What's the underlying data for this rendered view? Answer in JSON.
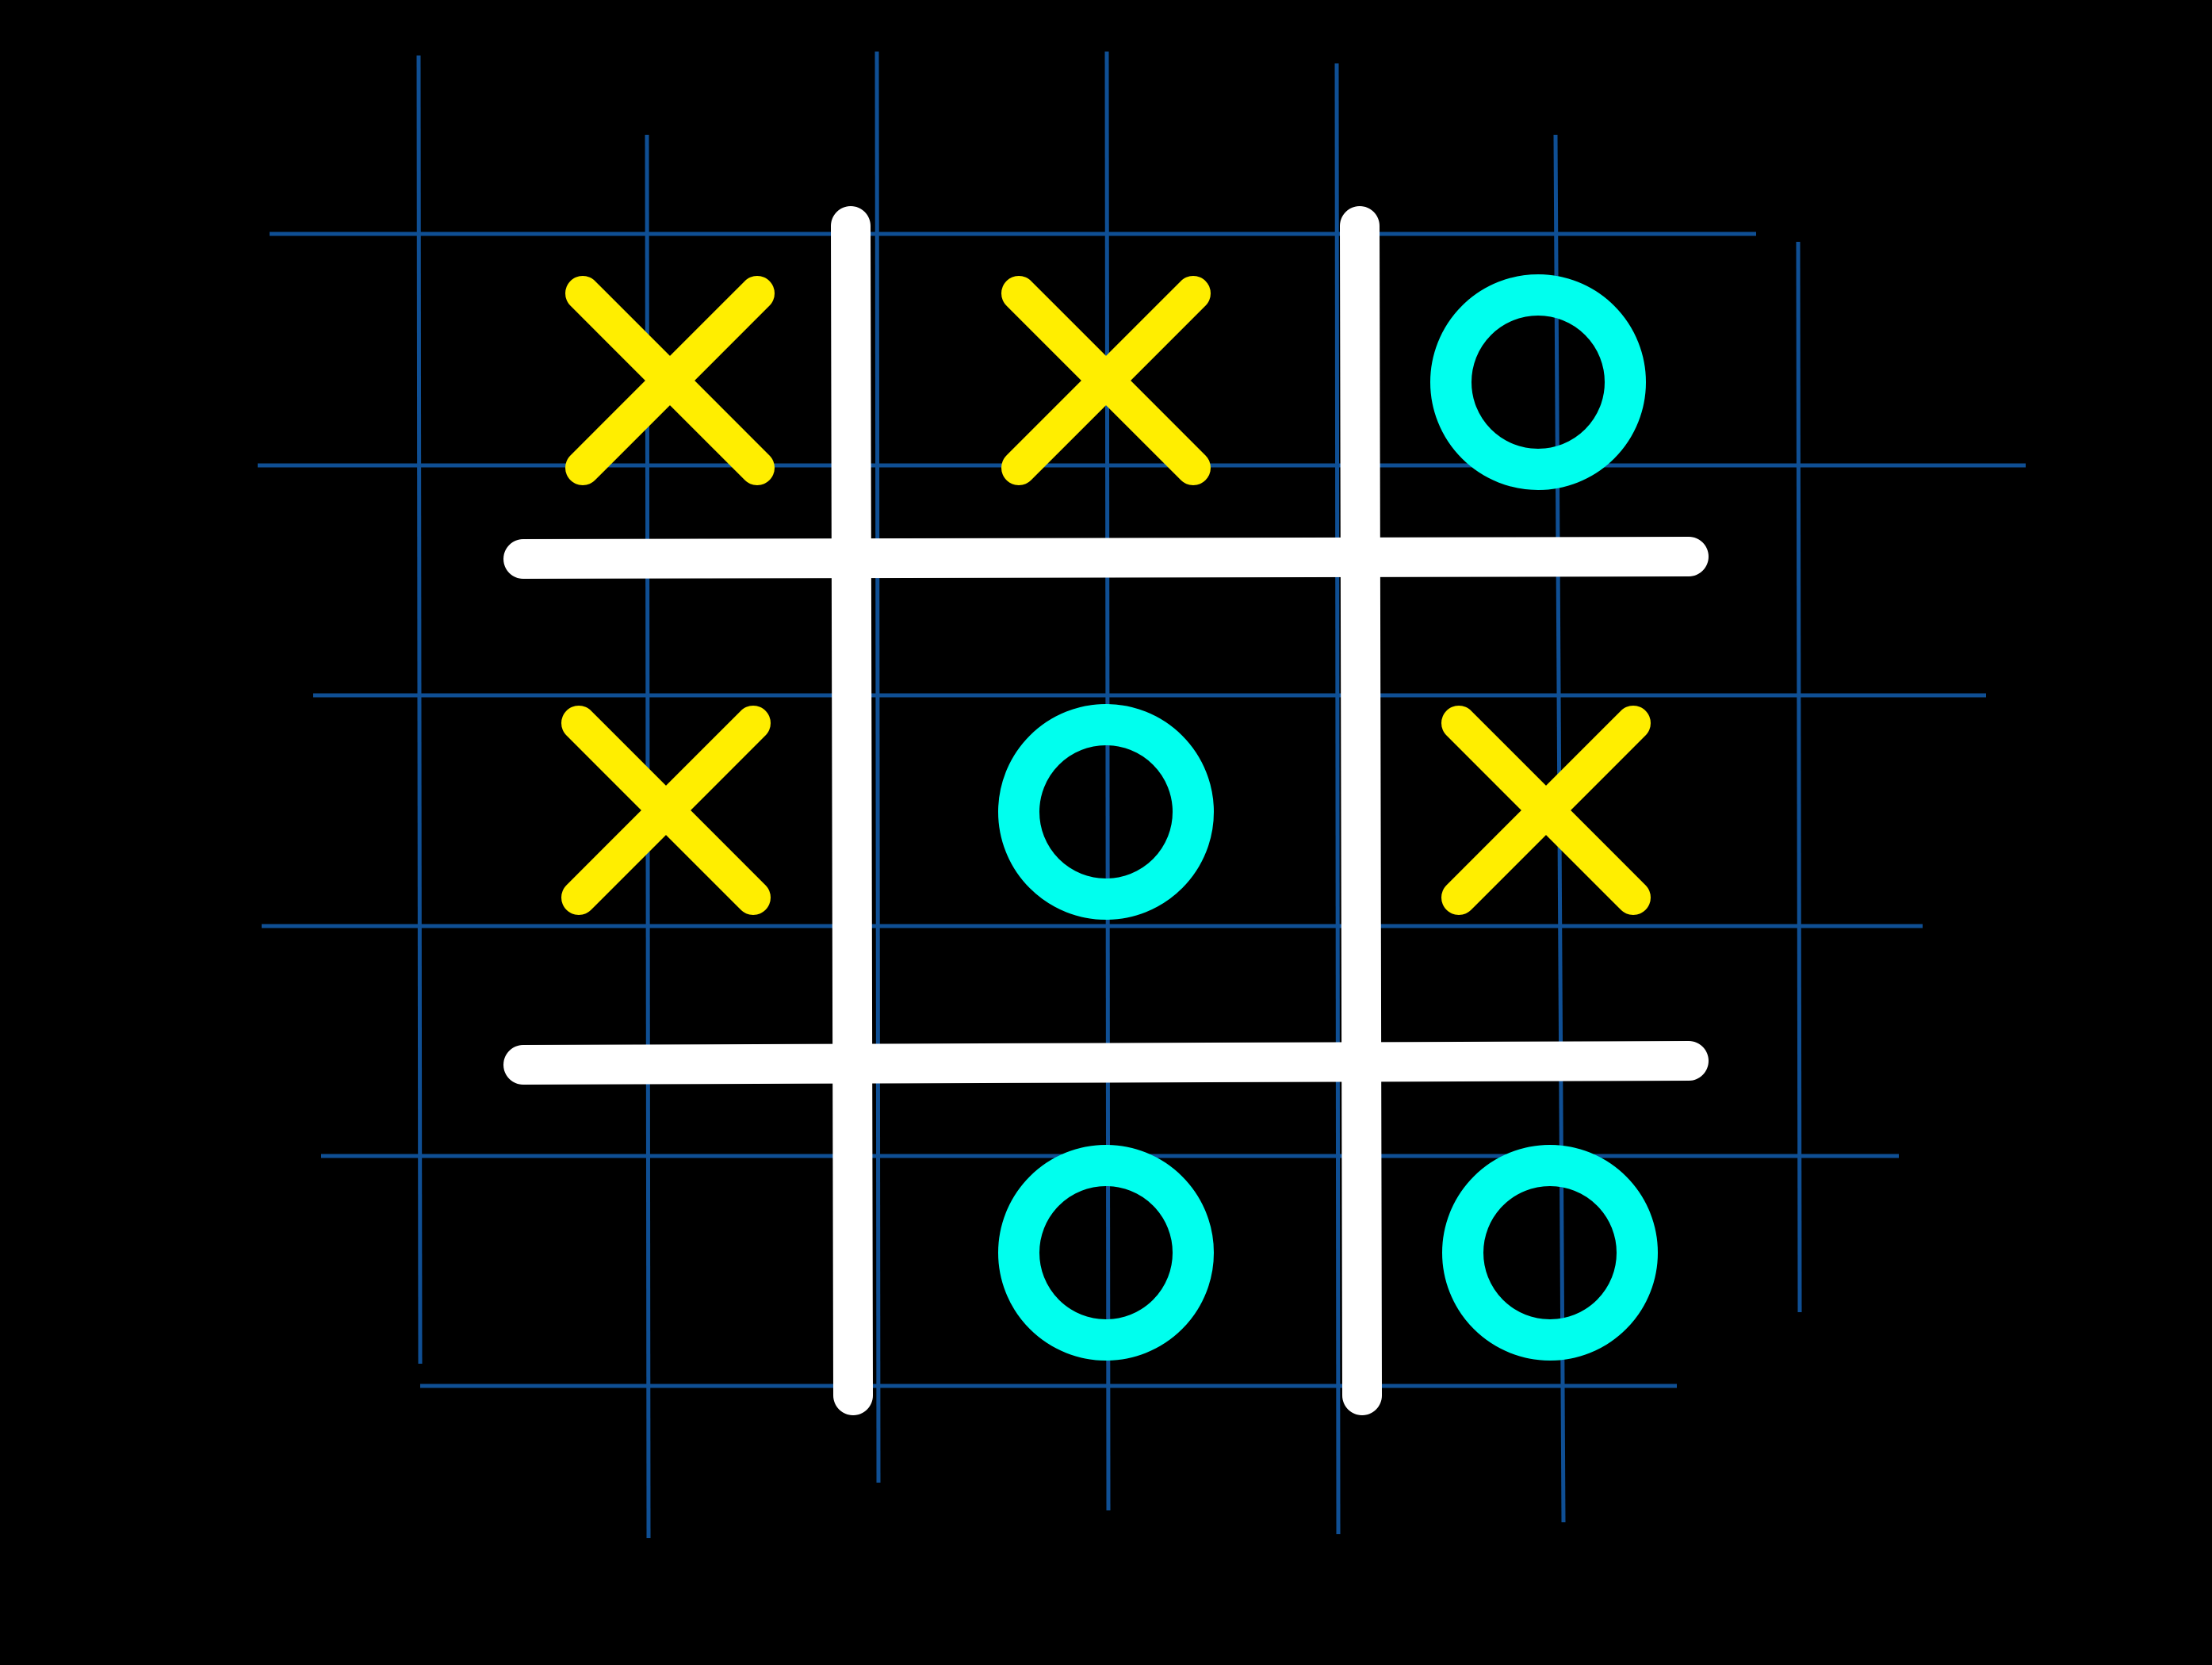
{
  "game": {
    "board": [
      [
        "X",
        "X",
        "O"
      ],
      [
        "X",
        "O",
        "X"
      ],
      [
        "",
        "O",
        "O"
      ]
    ]
  },
  "colors": {
    "background": "#000000",
    "grid_paper": "#0f4f94",
    "board_lines": "#ffffff",
    "x_mark": "#ffee00",
    "o_mark": "#00ffee"
  },
  "icons": {
    "x_mark": "x-mark-icon",
    "o_mark": "o-mark-icon"
  }
}
